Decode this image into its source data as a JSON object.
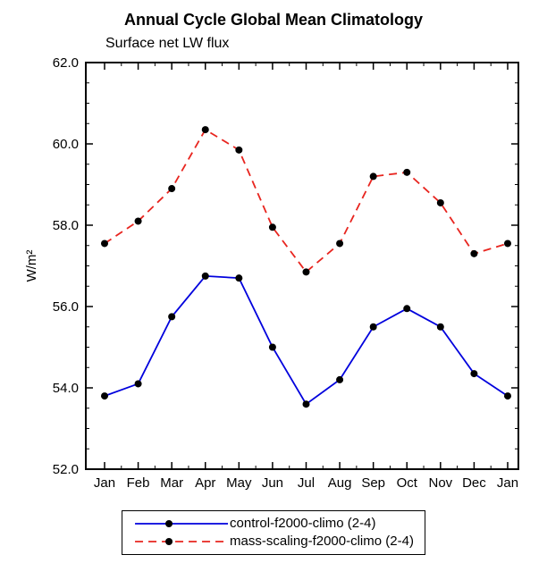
{
  "chart_data": {
    "type": "line",
    "title": "Annual Cycle Global Mean Climatology",
    "subtitle": "Surface net LW flux",
    "ylabel": "W/m²",
    "categories": [
      "Jan",
      "Feb",
      "Mar",
      "Apr",
      "May",
      "Jun",
      "Jul",
      "Aug",
      "Sep",
      "Oct",
      "Nov",
      "Dec",
      "Jan"
    ],
    "ylim": [
      52.0,
      62.0
    ],
    "ytick_major": [
      52.0,
      54.0,
      56.0,
      58.0,
      60.0,
      62.0
    ],
    "ytick_labels": [
      "52.0",
      "54.0",
      "56.0",
      "58.0",
      "60.0",
      "62.0"
    ],
    "ytick_minor_step": 0.5,
    "grid": "off",
    "legend_position": "bottom-center",
    "marker": {
      "shape": "filled-circle",
      "color": "#000000",
      "radius": 4
    },
    "series": [
      {
        "name": "control-f2000-climo (2-4)",
        "color": "#0000dd",
        "dash": "solid",
        "values": [
          53.8,
          54.1,
          55.75,
          56.75,
          56.7,
          55.0,
          53.6,
          54.2,
          55.5,
          55.95,
          55.5,
          54.35,
          53.8
        ]
      },
      {
        "name": "mass-scaling-f2000-climo (2-4)",
        "color": "#e8251f",
        "dash": "dashed",
        "values": [
          57.55,
          58.1,
          58.9,
          60.35,
          59.85,
          57.95,
          56.85,
          57.55,
          59.2,
          59.3,
          58.55,
          57.3,
          57.55
        ]
      }
    ]
  }
}
